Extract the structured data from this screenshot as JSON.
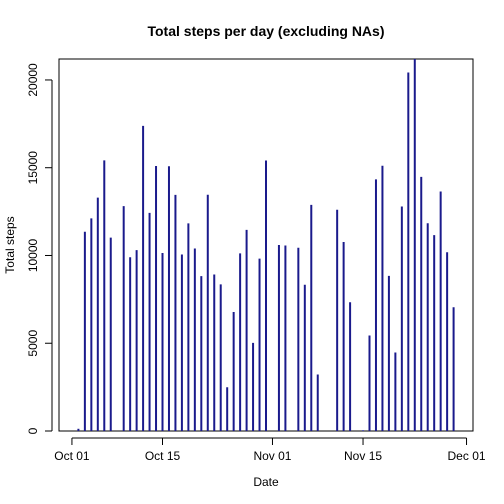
{
  "chart_data": {
    "type": "bar",
    "title": "Total steps per day (excluding NAs)",
    "xlabel": "Date",
    "ylabel": "Total steps",
    "bar_color": "#1a1a8c",
    "x_axis": {
      "start": "2012-09-29",
      "end": "2012-12-02",
      "ticks": [
        "2012-10-01",
        "2012-10-15",
        "2012-11-01",
        "2012-11-15",
        "2012-12-01"
      ],
      "tick_labels": [
        "Oct 01",
        "Oct 15",
        "Nov 01",
        "Nov 15",
        "Dec 01"
      ]
    },
    "y_axis": {
      "ylim": [
        0,
        21194
      ],
      "ticks": [
        0,
        5000,
        10000,
        15000,
        20000
      ],
      "tick_labels": [
        "0",
        "5000",
        "10000",
        "15000",
        "20000"
      ]
    },
    "grid": false,
    "x": [
      "2012-10-02",
      "2012-10-03",
      "2012-10-04",
      "2012-10-05",
      "2012-10-06",
      "2012-10-07",
      "2012-10-09",
      "2012-10-10",
      "2012-10-11",
      "2012-10-12",
      "2012-10-13",
      "2012-10-14",
      "2012-10-15",
      "2012-10-16",
      "2012-10-17",
      "2012-10-18",
      "2012-10-19",
      "2012-10-20",
      "2012-10-21",
      "2012-10-22",
      "2012-10-23",
      "2012-10-24",
      "2012-10-25",
      "2012-10-26",
      "2012-10-27",
      "2012-10-28",
      "2012-10-29",
      "2012-10-30",
      "2012-10-31",
      "2012-11-02",
      "2012-11-03",
      "2012-11-05",
      "2012-11-06",
      "2012-11-07",
      "2012-11-08",
      "2012-11-11",
      "2012-11-12",
      "2012-11-13",
      "2012-11-15",
      "2012-11-16",
      "2012-11-17",
      "2012-11-18",
      "2012-11-19",
      "2012-11-20",
      "2012-11-21",
      "2012-11-22",
      "2012-11-23",
      "2012-11-24",
      "2012-11-25",
      "2012-11-26",
      "2012-11-27",
      "2012-11-28",
      "2012-11-29"
    ],
    "values": [
      126,
      11352,
      12116,
      13294,
      15420,
      11015,
      12811,
      9900,
      10304,
      17382,
      12426,
      15098,
      10139,
      15084,
      13452,
      10056,
      11829,
      10395,
      8821,
      13460,
      8918,
      8355,
      2492,
      6778,
      10119,
      11458,
      5018,
      9819,
      15414,
      10600,
      10571,
      10439,
      8334,
      12883,
      3219,
      12608,
      10765,
      7336,
      41,
      5441,
      14339,
      15110,
      8841,
      4472,
      12787,
      20427,
      21194,
      14478,
      11834,
      11162,
      13646,
      10183,
      7047
    ]
  }
}
